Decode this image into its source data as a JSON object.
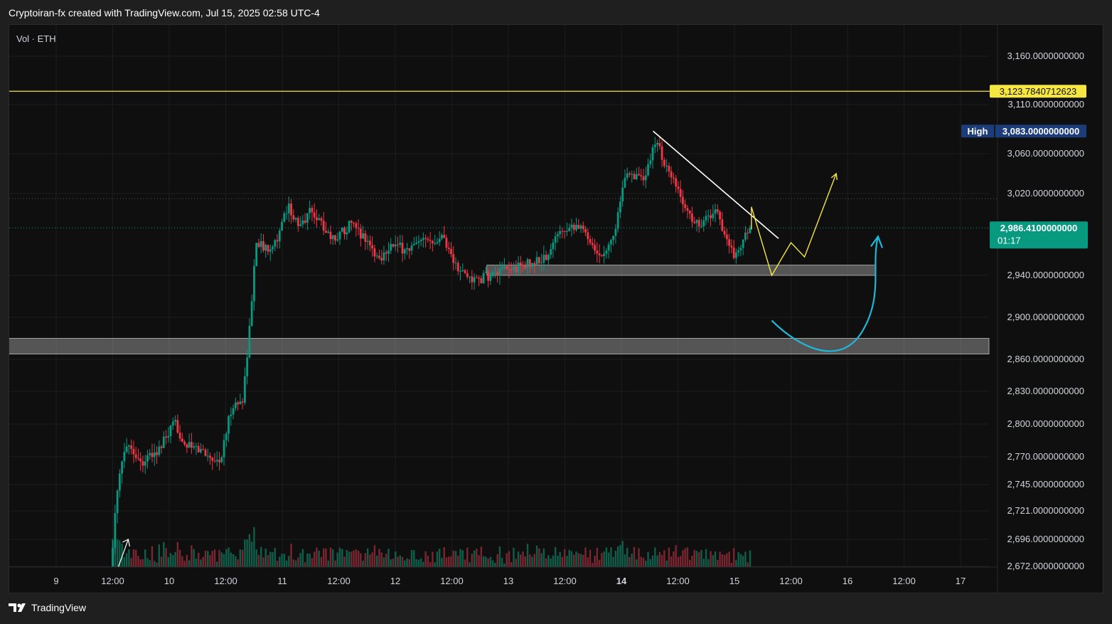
{
  "header": {
    "title": "Cryptoiran-fx created with TradingView.com, Jul 15, 2025 02:58 UTC-4"
  },
  "footer": {
    "brand": "TradingView"
  },
  "chart_data": {
    "type": "candlestick",
    "symbol_label": "Vol · ETH",
    "price_axis": {
      "tick_labels": [
        "3,160.0000000000",
        "3,110.0000000000",
        "3,060.0000000000",
        "3,020.0000000000",
        "2,940.0000000000",
        "2,900.0000000000",
        "2,860.0000000000",
        "2,830.0000000000",
        "2,800.0000000000",
        "2,770.0000000000",
        "2,745.0000000000",
        "2,721.0000000000",
        "2,696.0000000000",
        "2,672.0000000000"
      ],
      "tick_values": [
        3160,
        3110,
        3060,
        3020,
        2940,
        2900,
        2860,
        2830,
        2800,
        2770,
        2745,
        2721,
        2696,
        2672
      ]
    },
    "time_axis": {
      "tick_labels": [
        "9",
        "12:00",
        "10",
        "12:00",
        "11",
        "12:00",
        "12",
        "12:00",
        "13",
        "12:00",
        "14",
        "12:00",
        "15",
        "12:00",
        "16",
        "12:00",
        "17"
      ],
      "bold_labels": [
        "14"
      ]
    },
    "price_labels": {
      "resistance": {
        "value": "3,123.7840712623",
        "price": 3123.78,
        "color": "#f5e642"
      },
      "high": {
        "tag": "High",
        "value": "3,083.0000000000",
        "price": 3083,
        "color": "#1c3d7a"
      },
      "last": {
        "value": "2,986.4100000000",
        "countdown": "01:17",
        "price": 2986.41,
        "color": "#089981"
      }
    },
    "zones": [
      {
        "name": "support-zone-upper",
        "price_top": 2950,
        "price_bottom": 2940,
        "x_start_day": 12.81,
        "x_end_day": 16.25
      },
      {
        "name": "support-zone-lower",
        "price_top": 2880,
        "price_bottom": 2865,
        "x_start_day": 8.25,
        "x_end_day": 17.5
      }
    ],
    "trendline": {
      "from": {
        "day": 14.28,
        "price": 3083
      },
      "to": {
        "day": 15.39,
        "price": 2976
      }
    },
    "projection_path": [
      {
        "day": 15.15,
        "price": 2985
      },
      {
        "day": 15.15,
        "price": 3007
      },
      {
        "day": 15.33,
        "price": 2940
      },
      {
        "day": 15.5,
        "price": 2972
      },
      {
        "day": 15.62,
        "price": 2958
      },
      {
        "day": 15.9,
        "price": 3040
      }
    ],
    "curve_arrow": [
      {
        "day": 15.33,
        "price": 2897
      },
      {
        "day": 15.69,
        "price": 2873
      },
      {
        "day": 16.27,
        "price": 2978
      }
    ],
    "colors": {
      "up": "#089981",
      "down": "#f23645",
      "background": "#0f0f0f",
      "grid": "#1c1c1c",
      "resistance_line": "#f5e642",
      "trendline": "#ffffff",
      "projection": "#f5e642",
      "curve_arrow": "#1fb8d9"
    }
  }
}
